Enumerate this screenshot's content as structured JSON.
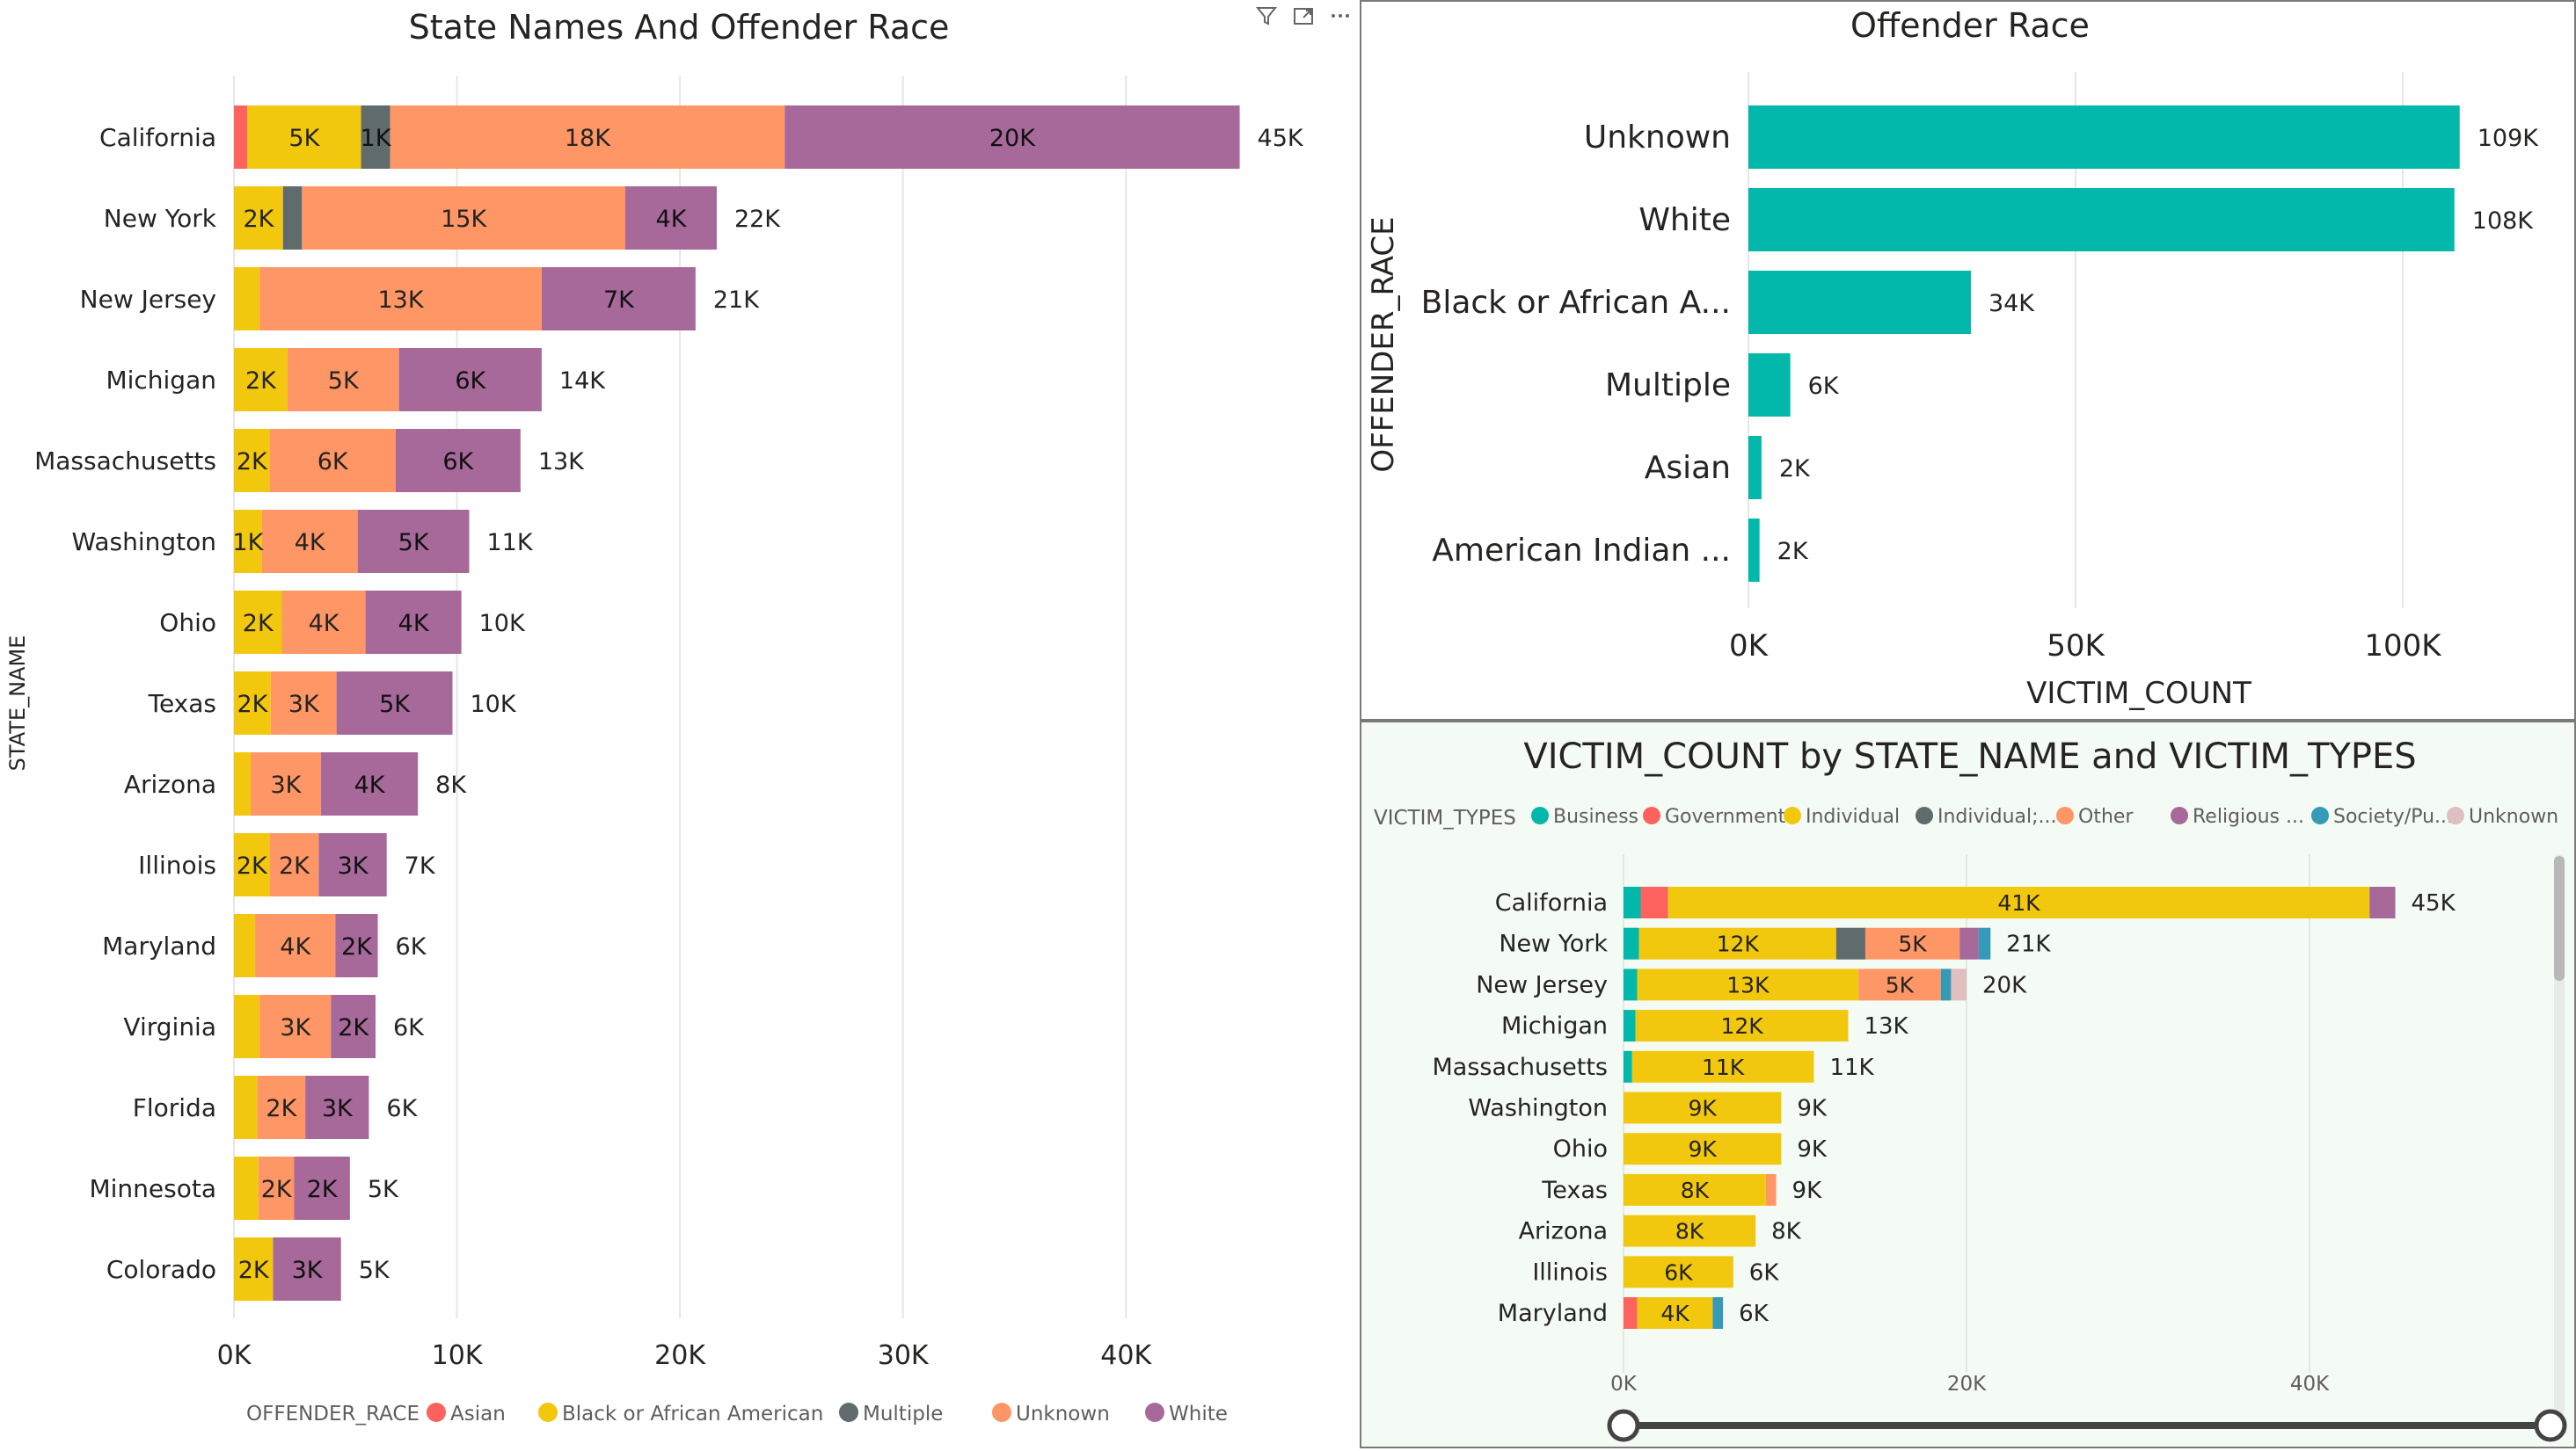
{
  "left_chart": {
    "title": "State Names And Offender Race",
    "ylabel": "STATE_NAME",
    "legend_title": "OFFENDER_RACE",
    "header_icons": [
      "filter-icon",
      "focus-mode-icon",
      "more-options-icon"
    ]
  },
  "top_right_chart": {
    "title": "Offender Race",
    "ylabel": "OFFENDER_RACE",
    "xlabel": "VICTIM_COUNT"
  },
  "bottom_right_chart": {
    "title": "VICTIM_COUNT by STATE_NAME and VICTIM_TYPES",
    "legend_title": "VICTIM_TYPES"
  },
  "colors": {
    "asian": "#fd625e",
    "black": "#f2c80f",
    "multiple": "#5f6b6d",
    "unknown": "#fe9666",
    "white": "#a66999",
    "teal": "#01b8aa",
    "society": "#3599b8",
    "unknown_vt": "#dfbfbf",
    "gridline": "#e6e6e6"
  },
  "chart_data": [
    {
      "type": "bar",
      "orientation": "horizontal",
      "stacked": true,
      "title": "State Names And Offender Race",
      "ylabel": "STATE_NAME",
      "xlabel": "",
      "xlim": [
        0,
        45000
      ],
      "xticks": [
        0,
        10000,
        20000,
        30000,
        40000
      ],
      "xtick_labels": [
        "0K",
        "10K",
        "20K",
        "30K",
        "40K"
      ],
      "legend_title": "OFFENDER_RACE",
      "legend_position": "bottom",
      "categories": [
        "California",
        "New York",
        "New Jersey",
        "Michigan",
        "Massachusetts",
        "Washington",
        "Ohio",
        "Texas",
        "Arizona",
        "Illinois",
        "Maryland",
        "Virginia",
        "Florida",
        "Minnesota",
        "Colorado"
      ],
      "series": [
        {
          "name": "Asian",
          "color": "#fd625e",
          "values": [
            600,
            0,
            0,
            0,
            0,
            0,
            0,
            0,
            0,
            0,
            0,
            0,
            0,
            0,
            0
          ]
        },
        {
          "name": "Black or African American",
          "color": "#f2c80f",
          "values": [
            5100,
            2200,
            1150,
            2400,
            1600,
            1250,
            2150,
            1650,
            750,
            1600,
            950,
            1150,
            1050,
            1100,
            1750
          ]
        },
        {
          "name": "Multiple",
          "color": "#5f6b6d",
          "values": [
            1300,
            850,
            0,
            0,
            0,
            0,
            0,
            0,
            0,
            0,
            0,
            0,
            0,
            0,
            0
          ]
        },
        {
          "name": "Unknown",
          "color": "#fe9666",
          "values": [
            17700,
            14500,
            12650,
            5000,
            5650,
            4300,
            3750,
            2950,
            3150,
            2200,
            3600,
            3200,
            2150,
            1600,
            0
          ]
        },
        {
          "name": "White",
          "color": "#a66999",
          "values": [
            20400,
            4100,
            6900,
            6400,
            5600,
            5000,
            4300,
            5200,
            4350,
            3050,
            1900,
            2000,
            2850,
            2500,
            3050
          ]
        }
      ],
      "segment_labels": [
        [
          "",
          "5K",
          "1K",
          "18K",
          "20K"
        ],
        [
          "",
          "2K",
          "",
          "15K",
          "4K"
        ],
        [
          "",
          "",
          "",
          "13K",
          "7K"
        ],
        [
          "",
          "2K",
          "",
          "5K",
          "6K"
        ],
        [
          "",
          "2K",
          "",
          "6K",
          "6K"
        ],
        [
          "",
          "1K",
          "",
          "4K",
          "5K"
        ],
        [
          "",
          "2K",
          "",
          "4K",
          "4K"
        ],
        [
          "",
          "2K",
          "",
          "3K",
          "5K"
        ],
        [
          "",
          "",
          "",
          "3K",
          "4K"
        ],
        [
          "",
          "2K",
          "",
          "2K",
          "3K"
        ],
        [
          "",
          "",
          "",
          "4K",
          "2K"
        ],
        [
          "",
          "",
          "",
          "3K",
          "2K"
        ],
        [
          "",
          "",
          "",
          "2K",
          "3K"
        ],
        [
          "",
          "",
          "",
          "2K",
          "2K"
        ],
        [
          "",
          "2K",
          "",
          "",
          "3K"
        ]
      ],
      "total_labels": [
        "45K",
        "22K",
        "21K",
        "14K",
        "13K",
        "11K",
        "10K",
        "10K",
        "8K",
        "7K",
        "6K",
        "6K",
        "6K",
        "5K",
        "5K"
      ]
    },
    {
      "type": "bar",
      "orientation": "horizontal",
      "title": "Offender Race",
      "ylabel": "OFFENDER_RACE",
      "xlabel": "VICTIM_COUNT",
      "xlim": [
        0,
        109000
      ],
      "xticks": [
        0,
        50000,
        100000
      ],
      "xtick_labels": [
        "0K",
        "50K",
        "100K"
      ],
      "categories": [
        "Unknown",
        "White",
        "Black or African A...",
        "Multiple",
        "Asian",
        "American Indian ..."
      ],
      "values": [
        108700,
        107900,
        34000,
        6400,
        2000,
        1700
      ],
      "value_labels": [
        "109K",
        "108K",
        "34K",
        "6K",
        "2K",
        "2K"
      ],
      "color": "#01b8aa"
    },
    {
      "type": "bar",
      "orientation": "horizontal",
      "stacked": true,
      "title": "VICTIM_COUNT by STATE_NAME and VICTIM_TYPES",
      "xlabel": "",
      "ylabel": "",
      "xlim": [
        0,
        46000
      ],
      "xticks": [
        0,
        20000,
        40000
      ],
      "xtick_labels": [
        "0K",
        "20K",
        "40K"
      ],
      "legend_title": "VICTIM_TYPES",
      "legend_position": "top",
      "categories": [
        "California",
        "New York",
        "New Jersey",
        "Michigan",
        "Massachusetts",
        "Washington",
        "Ohio",
        "Texas",
        "Arizona",
        "Illinois",
        "Maryland"
      ],
      "series": [
        {
          "name": "Business",
          "color": "#01b8aa",
          "values": [
            1000,
            900,
            800,
            700,
            500,
            0,
            0,
            0,
            0,
            0,
            0
          ]
        },
        {
          "name": "Government",
          "color": "#fd625e",
          "values": [
            1600,
            0,
            0,
            0,
            0,
            0,
            0,
            0,
            0,
            0,
            800
          ]
        },
        {
          "name": "Individual",
          "color": "#f2c80f",
          "values": [
            40900,
            11500,
            12900,
            12400,
            10600,
            9200,
            9200,
            8300,
            7700,
            6400,
            4400
          ]
        },
        {
          "name": "Individual;...",
          "color": "#5f6b6d",
          "values": [
            0,
            1700,
            0,
            0,
            0,
            0,
            0,
            0,
            0,
            0,
            0
          ]
        },
        {
          "name": "Other",
          "color": "#fe9666",
          "values": [
            0,
            5500,
            4800,
            0,
            0,
            0,
            0,
            600,
            0,
            0,
            0
          ]
        },
        {
          "name": "Religious ...",
          "color": "#a66999",
          "values": [
            1500,
            1100,
            0,
            0,
            0,
            0,
            0,
            0,
            0,
            0,
            0
          ]
        },
        {
          "name": "Society/Pu...",
          "color": "#3599b8",
          "values": [
            0,
            700,
            600,
            0,
            0,
            0,
            0,
            0,
            0,
            0,
            600
          ]
        },
        {
          "name": "Unknown",
          "color": "#dfbfbf",
          "values": [
            0,
            0,
            900,
            0,
            0,
            0,
            0,
            0,
            0,
            0,
            0
          ]
        }
      ],
      "segment_labels": [
        [
          "",
          "",
          "41K",
          "",
          "",
          "",
          "",
          ""
        ],
        [
          "",
          "",
          "12K",
          "",
          "5K",
          "",
          "",
          ""
        ],
        [
          "",
          "",
          "13K",
          "",
          "5K",
          "",
          "",
          ""
        ],
        [
          "",
          "",
          "12K",
          "",
          "",
          "",
          "",
          ""
        ],
        [
          "",
          "",
          "11K",
          "",
          "",
          "",
          "",
          ""
        ],
        [
          "",
          "",
          "9K",
          "",
          "",
          "",
          "",
          ""
        ],
        [
          "",
          "",
          "9K",
          "",
          "",
          "",
          "",
          ""
        ],
        [
          "",
          "",
          "8K",
          "",
          "",
          "",
          "",
          ""
        ],
        [
          "",
          "",
          "8K",
          "",
          "",
          "",
          "",
          ""
        ],
        [
          "",
          "",
          "6K",
          "",
          "",
          "",
          "",
          ""
        ],
        [
          "",
          "",
          "4K",
          "",
          "",
          "",
          "",
          ""
        ]
      ],
      "total_labels": [
        "45K",
        "21K",
        "20K",
        "13K",
        "11K",
        "9K",
        "9K",
        "9K",
        "8K",
        "6K",
        "6K"
      ]
    }
  ]
}
